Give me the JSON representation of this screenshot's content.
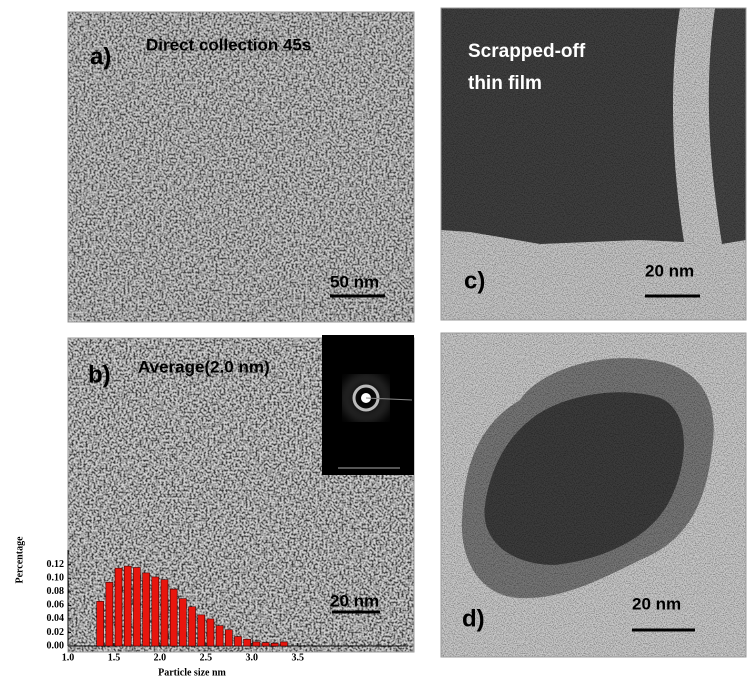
{
  "panels": {
    "a": {
      "label": "a)",
      "caption": "Direct collection 45s",
      "scale": "50 nm"
    },
    "b": {
      "label": "b)",
      "caption": "Average(2.0 nm)",
      "scale": "20 nm"
    },
    "c": {
      "label": "c)",
      "caption": [
        "Scrapped-off",
        "thin film"
      ],
      "scale": "20 nm"
    },
    "d": {
      "label": "d)",
      "scale": "20 nm"
    }
  },
  "chart_data": {
    "type": "histogram",
    "xlabel": "Particle size nm",
    "ylabel": "Percentage",
    "bins": [
      1.3,
      1.4,
      1.5,
      1.6,
      1.7,
      1.8,
      1.9,
      2.0,
      2.1,
      2.2,
      2.3,
      2.4,
      2.5,
      2.6,
      2.7,
      2.8,
      2.9,
      3.0,
      3.1,
      3.2,
      3.3,
      3.4
    ],
    "values": [
      0.066,
      0.094,
      0.115,
      0.118,
      0.116,
      0.108,
      0.102,
      0.098,
      0.084,
      0.07,
      0.058,
      0.046,
      0.04,
      0.03,
      0.024,
      0.014,
      0.01,
      0.006,
      0.005,
      0.004,
      0.006
    ],
    "color": "#e8160e",
    "xlim": [
      1.0,
      4.7
    ],
    "ylim": [
      0,
      0.13
    ],
    "xticks": [
      {
        "value": 1,
        "label": "1.0"
      },
      {
        "value": 1.5,
        "label": "1.5"
      },
      {
        "value": 2,
        "label": "2.0"
      },
      {
        "value": 2.5,
        "label": "2.5"
      },
      {
        "value": 3,
        "label": "3.0"
      },
      {
        "value": 3.5,
        "label": "3.5"
      }
    ],
    "yticks": [
      {
        "value": 0,
        "label": "0.00"
      },
      {
        "value": 0.02,
        "label": "0.02"
      },
      {
        "value": 0.04,
        "label": "0.04"
      },
      {
        "value": 0.06,
        "label": "0.06"
      },
      {
        "value": 0.08,
        "label": "0.08"
      },
      {
        "value": 0.1,
        "label": "0.10"
      },
      {
        "value": 0.12,
        "label": "0.12"
      }
    ]
  }
}
